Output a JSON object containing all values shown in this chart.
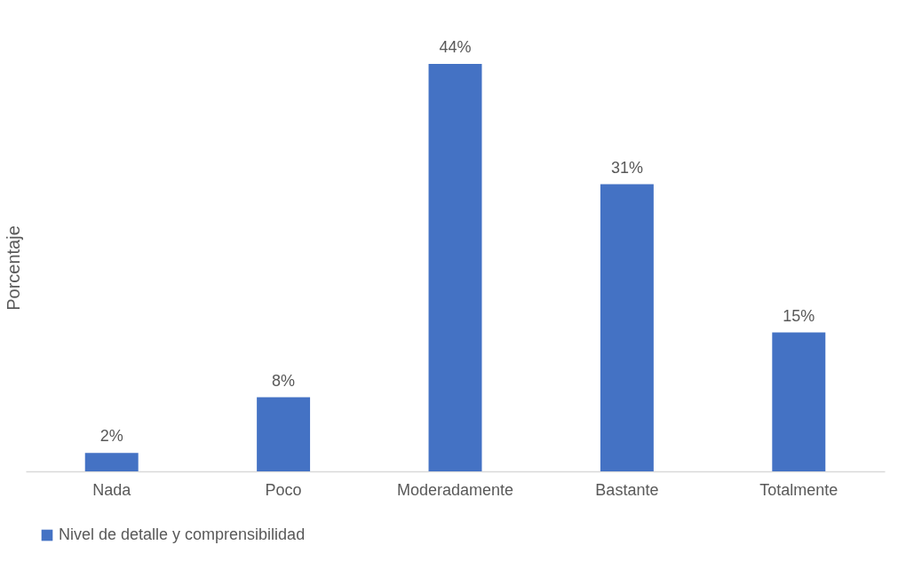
{
  "chart_data": {
    "type": "bar",
    "ylabel": "Porcentaje",
    "categories": [
      "Nada",
      "Poco",
      "Moderadamente",
      "Bastante",
      "Totalmente"
    ],
    "series": [
      {
        "name": "Nivel de detalle y comprensibilidad",
        "color": "#4472c4",
        "values": [
          2,
          8,
          44,
          31,
          15
        ],
        "value_labels": [
          "2%",
          "8%",
          "44%",
          "31%",
          "15%"
        ]
      }
    ],
    "legend": "bottom",
    "grid": false
  }
}
